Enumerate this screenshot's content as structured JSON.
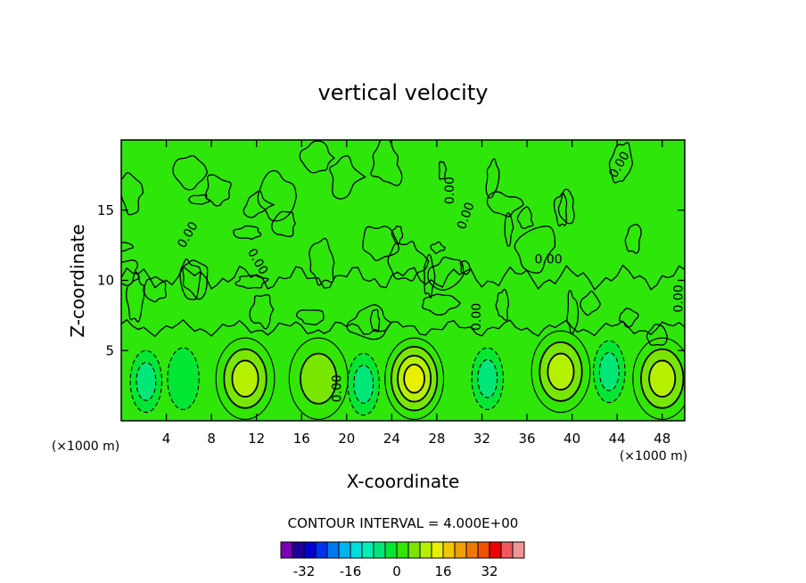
{
  "chart_data": {
    "type": "heatmap",
    "title": "vertical velocity",
    "xlabel": "X-coordinate",
    "ylabel": "Z-coordinate",
    "x_unit_left": "(×1000 m)",
    "x_unit_right": "(×1000 m)",
    "xlim": [
      0,
      50
    ],
    "ylim": [
      0,
      20
    ],
    "x_ticks": [
      4,
      8,
      12,
      16,
      20,
      24,
      28,
      32,
      36,
      40,
      44,
      48
    ],
    "y_ticks": [
      5,
      10,
      15
    ],
    "contour_interval_label": "CONTOUR INTERVAL = 4.000E+00",
    "contour_interval": 4,
    "zero_contour_label": "0.00",
    "colorbar": {
      "ticks": [
        "-32",
        "-16",
        "0",
        "16",
        "32"
      ],
      "tick_values": [
        -32,
        -16,
        0,
        16,
        32
      ],
      "colors": [
        "#7a00b4",
        "#1e0096",
        "#0000d2",
        "#0032f0",
        "#0078f0",
        "#00b4f0",
        "#00dcdc",
        "#00f0b4",
        "#00e678",
        "#00e632",
        "#32e600",
        "#78e600",
        "#b4f000",
        "#e6f000",
        "#f0c800",
        "#f0a000",
        "#f07800",
        "#f05000",
        "#f00000",
        "#f05a5a",
        "#f09696"
      ]
    },
    "features": [
      {
        "kind": "updraft",
        "x": 11,
        "z": 3,
        "peak": 10
      },
      {
        "kind": "updraft",
        "x": 26,
        "z": 3,
        "peak": 14
      },
      {
        "kind": "updraft",
        "x": 39,
        "z": 3.5,
        "peak": 10
      },
      {
        "kind": "updraft",
        "x": 48,
        "z": 3,
        "peak": 8
      },
      {
        "kind": "updraft",
        "x": 17.5,
        "z": 3,
        "peak": 5
      },
      {
        "kind": "downdraft",
        "x": 2.2,
        "z": 2.8,
        "peak": -4
      },
      {
        "kind": "downdraft",
        "x": 5.5,
        "z": 3,
        "peak": -3
      },
      {
        "kind": "downdraft",
        "x": 21.5,
        "z": 2.6,
        "peak": -5
      },
      {
        "kind": "downdraft",
        "x": 32.5,
        "z": 3,
        "peak": -5
      },
      {
        "kind": "downdraft",
        "x": 43.3,
        "z": 3.5,
        "peak": -4
      }
    ]
  }
}
